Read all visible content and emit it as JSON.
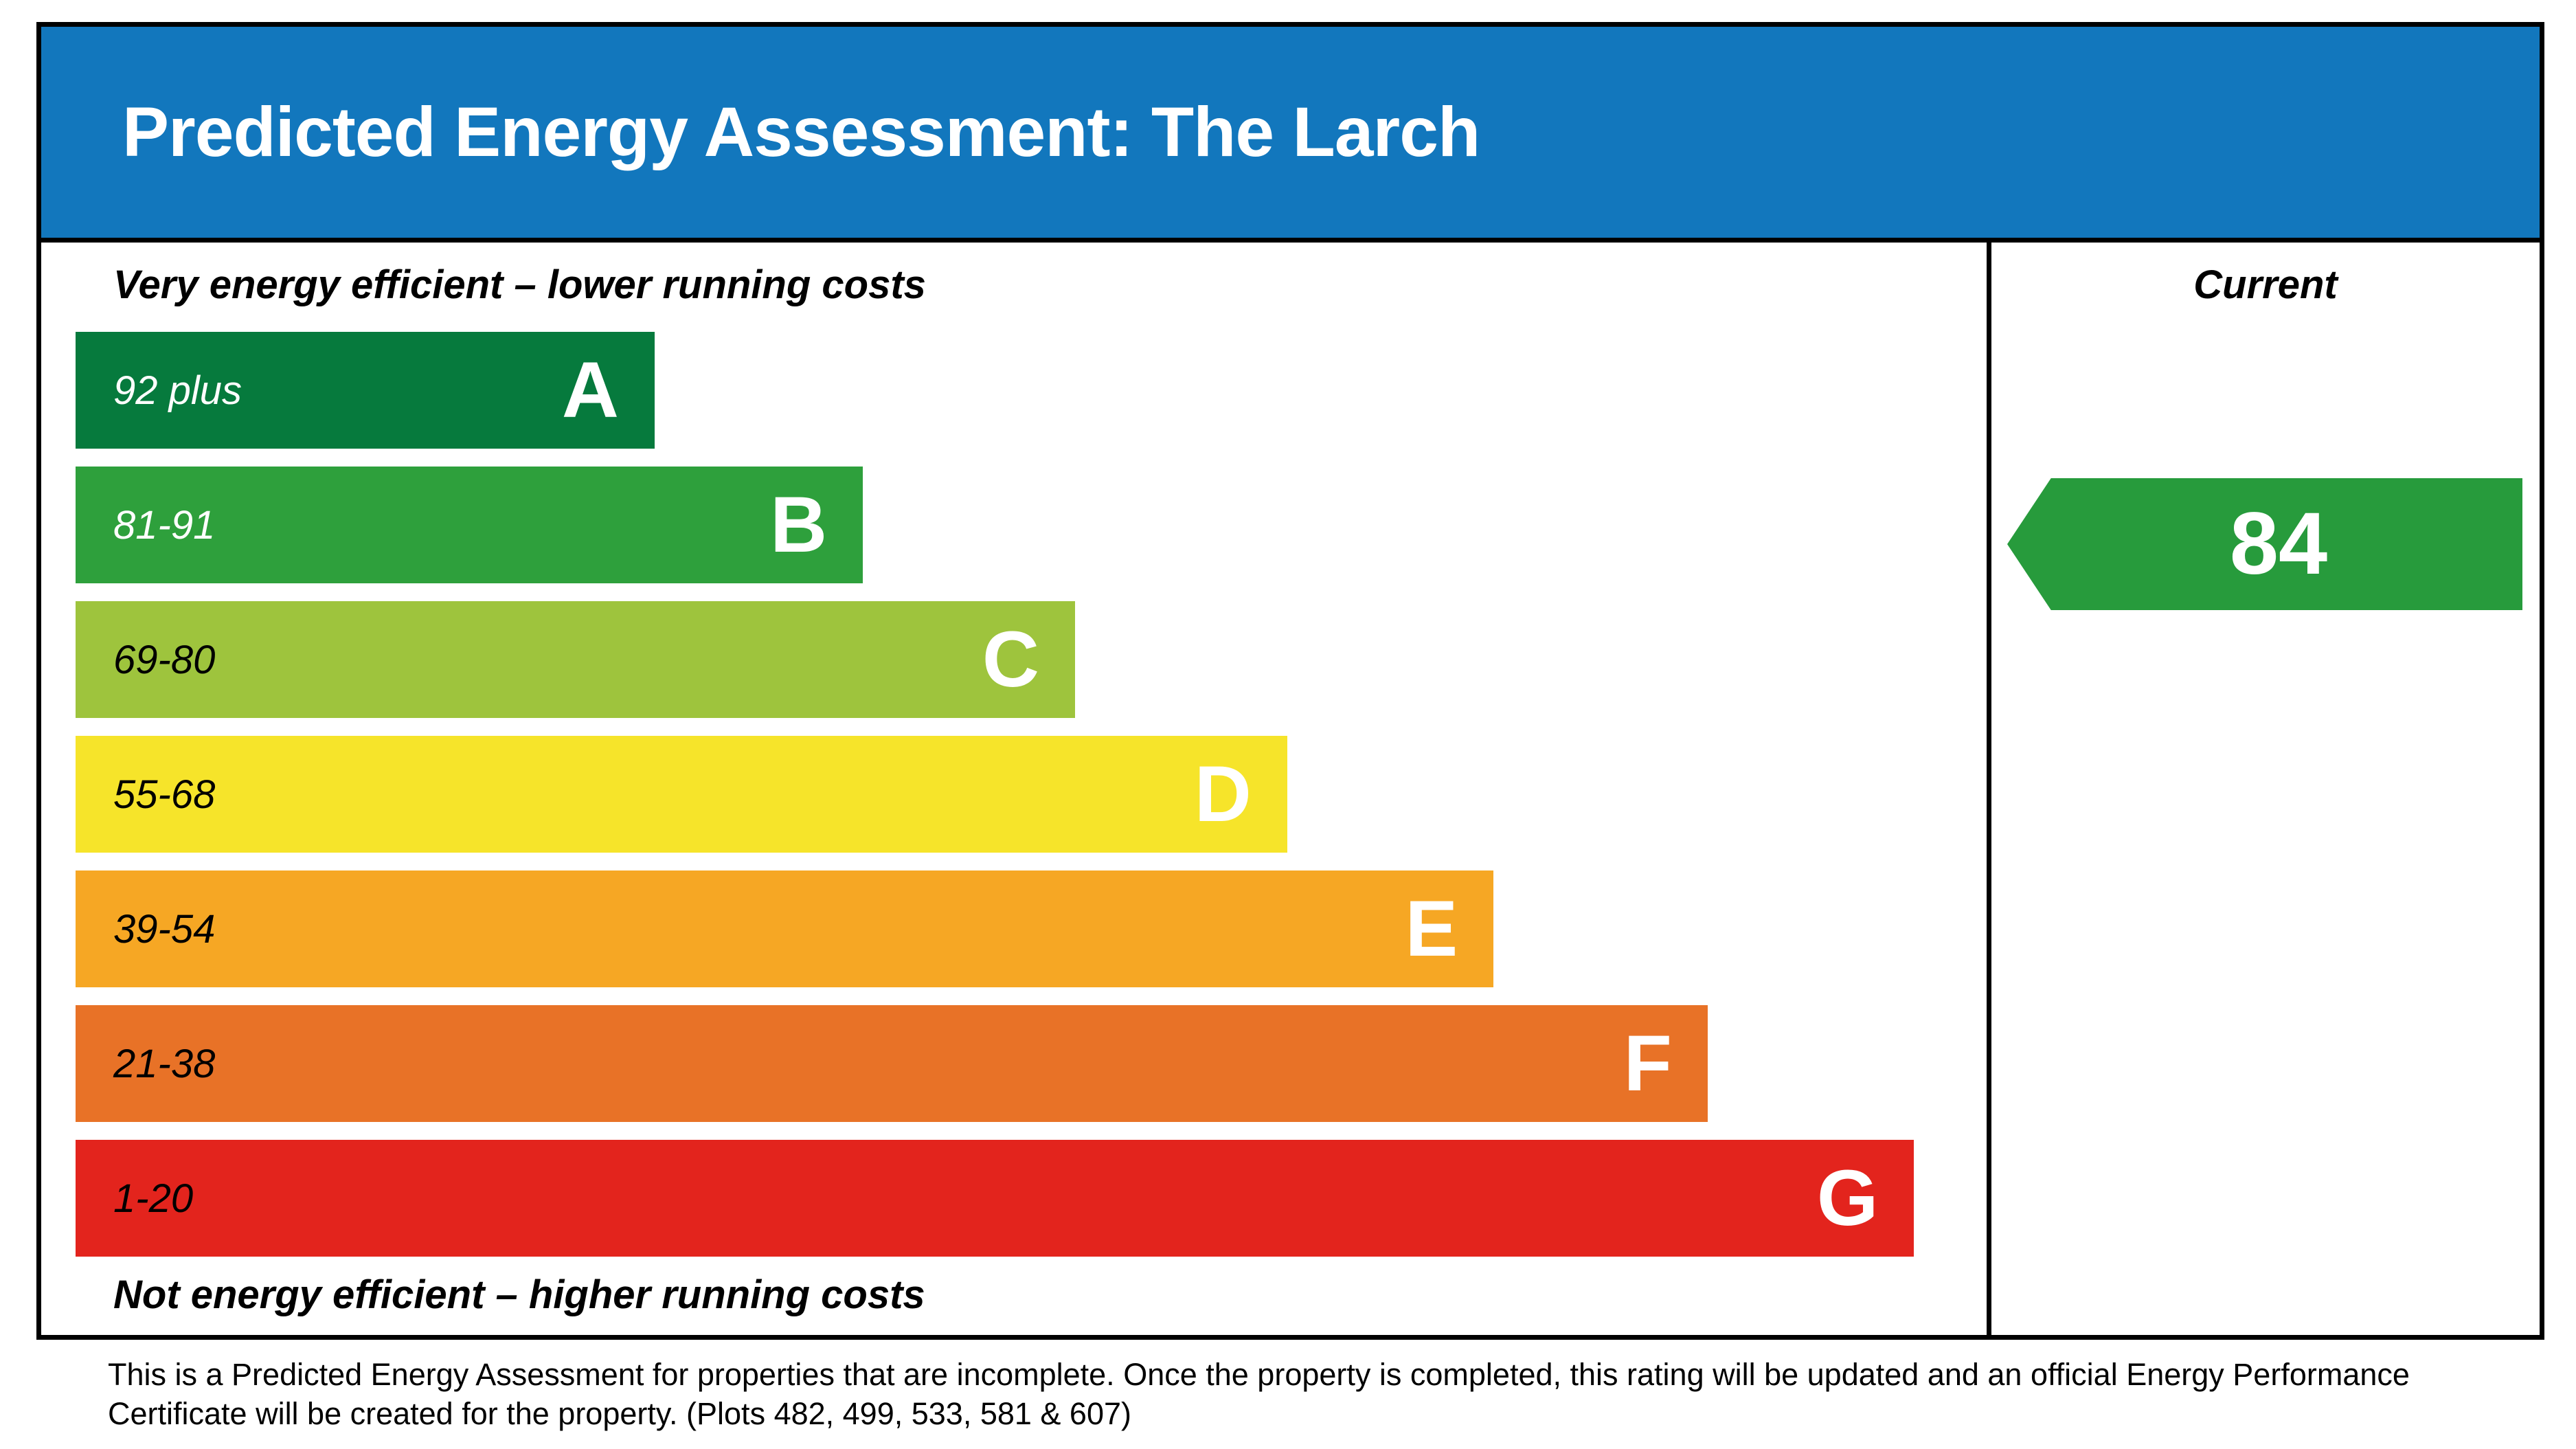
{
  "header": {
    "title": "Predicted Energy Assessment: The Larch",
    "background": "#1277bd"
  },
  "scale": {
    "top_label": "Very energy efficient – lower running costs",
    "bottom_label": "Not energy efficient – higher running costs"
  },
  "current_column": {
    "label": "Current",
    "value": "84",
    "arrow_color": "#279b3c"
  },
  "footer": {
    "lines": [
      "This is a Predicted Energy Assessment for properties that are incomplete. Once the property is completed, this rating will be updated and an official Energy Performance",
      "Certificate will be created for the property. (Plots 482, 499, 533, 581 & 607)"
    ]
  },
  "chart_data": {
    "type": "bar",
    "title": "Predicted Energy Assessment: The Larch",
    "column_label": "Current",
    "top_label": "Very energy efficient – lower running costs",
    "bottom_label": "Not energy efficient – higher running costs",
    "current_rating": 84,
    "current_band": "B",
    "bands": [
      {
        "range": "92 plus",
        "letter": "A",
        "min": 92,
        "max": 100,
        "color": "#067a3d",
        "range_color": "#ffffff",
        "width_pct": 30.3
      },
      {
        "range": "81-91",
        "letter": "B",
        "min": 81,
        "max": 91,
        "color": "#2ea03c",
        "range_color": "#ffffff",
        "width_pct": 41.2
      },
      {
        "range": "69-80",
        "letter": "C",
        "min": 69,
        "max": 80,
        "color": "#9ec43d",
        "range_color": "#000000",
        "width_pct": 52.3
      },
      {
        "range": "55-68",
        "letter": "D",
        "min": 55,
        "max": 68,
        "color": "#f6e42a",
        "range_color": "#000000",
        "width_pct": 63.4
      },
      {
        "range": "39-54",
        "letter": "E",
        "min": 39,
        "max": 54,
        "color": "#f6a724",
        "range_color": "#000000",
        "width_pct": 74.2
      },
      {
        "range": "21-38",
        "letter": "F",
        "min": 21,
        "max": 38,
        "color": "#e87227",
        "range_color": "#000000",
        "width_pct": 85.4
      },
      {
        "range": "1-20",
        "letter": "G",
        "min": 1,
        "max": 20,
        "color": "#e3241d",
        "range_color": "#000000",
        "width_pct": 96.2
      }
    ]
  }
}
